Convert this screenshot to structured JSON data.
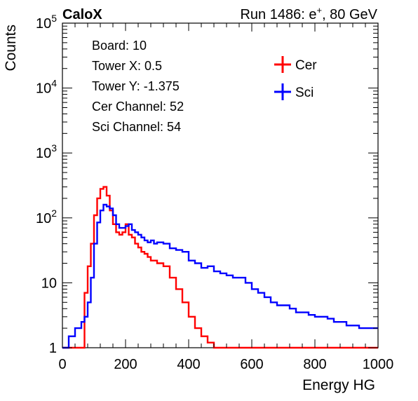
{
  "header": {
    "experiment": "CaloX",
    "run_prefix": "Run 1486: e",
    "run_sup": "+",
    "run_suffix": ", 80 GeV"
  },
  "info_box": {
    "lines": [
      "Board: 10",
      "Tower X: 0.5",
      "Tower Y: -1.375",
      "Cer Channel: 52",
      "Sci Channel: 54"
    ]
  },
  "chart_data": {
    "type": "line",
    "style": "step-histogram",
    "xlabel": "Energy HG",
    "ylabel": "Counts",
    "xlim": [
      0,
      1000
    ],
    "ylim": [
      1,
      100000
    ],
    "yscale": "log",
    "x_ticks": [
      0,
      200,
      400,
      600,
      800,
      1000
    ],
    "x_tick_labels": [
      "0",
      "200",
      "400",
      "600",
      "800",
      "1000"
    ],
    "y_tick_labels": [
      {
        "value": 1,
        "base": "1",
        "exp": ""
      },
      {
        "value": 10,
        "base": "10",
        "exp": ""
      },
      {
        "value": 100,
        "base": "10",
        "exp": "2"
      },
      {
        "value": 1000,
        "base": "10",
        "exp": "3"
      },
      {
        "value": 10000,
        "base": "10",
        "exp": "4"
      },
      {
        "value": 100000,
        "base": "10",
        "exp": "5"
      }
    ],
    "legend_position": "top-right",
    "x": [
      0,
      20,
      40,
      60,
      70,
      80,
      90,
      100,
      110,
      120,
      130,
      140,
      150,
      160,
      170,
      180,
      190,
      200,
      210,
      220,
      230,
      240,
      250,
      260,
      270,
      280,
      290,
      300,
      320,
      340,
      360,
      380,
      400,
      420,
      440,
      460,
      480,
      500,
      520,
      540,
      560,
      580,
      600,
      620,
      640,
      660,
      680,
      700,
      720,
      740,
      760,
      780,
      800,
      820,
      840,
      860,
      880,
      900,
      920,
      940,
      960,
      980
    ],
    "series": [
      {
        "name": "Cer",
        "color": "#ff0000",
        "values": [
          1,
          1,
          1,
          1,
          7,
          18,
          40,
          110,
          200,
          280,
          300,
          220,
          130,
          80,
          60,
          55,
          60,
          80,
          55,
          50,
          40,
          35,
          30,
          28,
          25,
          22,
          22,
          20,
          18,
          12,
          8,
          5,
          3,
          2,
          1.5,
          1.2,
          1,
          1,
          1,
          1,
          1,
          1,
          1,
          1,
          1,
          1,
          1,
          1,
          1,
          1,
          1,
          1,
          1,
          1,
          1,
          1,
          1,
          1,
          1,
          1,
          1,
          1
        ]
      },
      {
        "name": "Sci",
        "color": "#0000ff",
        "values": [
          1,
          1.5,
          2,
          2.5,
          3,
          5,
          12,
          40,
          85,
          130,
          160,
          150,
          140,
          110,
          80,
          70,
          70,
          75,
          80,
          65,
          60,
          55,
          50,
          45,
          42,
          45,
          40,
          42,
          40,
          34,
          32,
          30,
          22,
          20,
          17,
          18,
          15,
          14,
          13,
          12,
          12,
          10,
          8,
          7,
          6,
          5,
          4.5,
          4.5,
          4,
          3.5,
          3.5,
          3.2,
          3,
          3,
          2.8,
          2.5,
          2.5,
          2.2,
          2.2,
          2,
          2,
          2
        ]
      }
    ]
  }
}
